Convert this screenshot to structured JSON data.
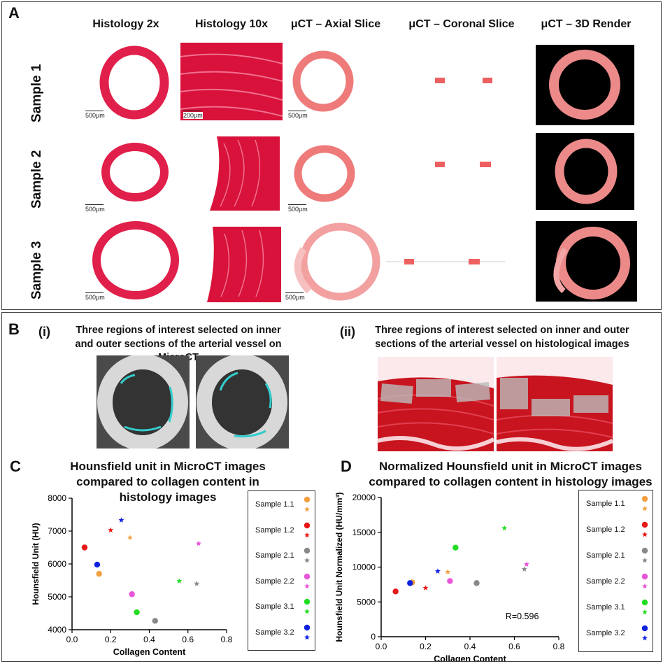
{
  "panel_a": {
    "letter": "A",
    "columns": [
      "Histology 2x",
      "Histology 10x",
      "μCT – Axial Slice",
      "μCT – Coronal Slice",
      "μCT – 3D Render"
    ],
    "rows": [
      "Sample 1",
      "Sample 2",
      "Sample 3"
    ],
    "scale_500": "500μm",
    "scale_200": "200μm"
  },
  "panel_b": {
    "letter": "B",
    "i_label": "(i)",
    "i_title": "Three regions of interest selected on inner and outer sections of the arterial vessel on MicroCT",
    "ii_label": "(ii)",
    "ii_title": "Three regions of interest selected on inner and outer sections of the arterial vessel on histological images"
  },
  "chart_data": [
    {
      "panel": "C",
      "type": "scatter",
      "title": "Hounsfield unit in MicroCT images compared to collagen content in histology images",
      "xlabel": "Collagen Content",
      "ylabel": "Hounsfield Unit (HU)",
      "xlim": [
        0,
        0.8
      ],
      "ylim": [
        4000,
        8000
      ],
      "xticks": [
        "0.0",
        "0.2",
        "0.4",
        "0.6",
        "0.8"
      ],
      "yticks": [
        "4000",
        "5000",
        "6000",
        "7000",
        "8000"
      ],
      "annotation": "",
      "series": [
        {
          "name": "Sample 1.1",
          "color": "#f5a040",
          "dot": [
            0.14,
            5700
          ],
          "star": [
            0.3,
            6800
          ]
        },
        {
          "name": "Sample 1.2",
          "color": "#e81818",
          "dot": [
            0.065,
            6500
          ],
          "star": [
            0.2,
            7030
          ]
        },
        {
          "name": "Sample 2.1",
          "color": "#888888",
          "dot": [
            0.43,
            4270
          ],
          "star": [
            0.645,
            5400
          ]
        },
        {
          "name": "Sample 2.2",
          "color": "#e855d8",
          "dot": [
            0.31,
            5080
          ],
          "star": [
            0.655,
            6620
          ]
        },
        {
          "name": "Sample 3.1",
          "color": "#22dd22",
          "dot": [
            0.335,
            4530
          ],
          "star": [
            0.555,
            5480
          ]
        },
        {
          "name": "Sample 3.2",
          "color": "#1020e0",
          "dot": [
            0.13,
            5980
          ],
          "star": [
            0.255,
            7330
          ]
        }
      ]
    },
    {
      "panel": "D",
      "type": "scatter",
      "title": "Normalized Hounsfield unit in MicroCT images compared to collagen content in histology images",
      "xlabel": "Collagen Content",
      "ylabel": "Hounsfield Unit Normalized (HU/mm³)",
      "xlim": [
        0,
        0.8
      ],
      "ylim": [
        0,
        20000
      ],
      "xticks": [
        "0.0",
        "0.2",
        "0.4",
        "0.6",
        "0.8"
      ],
      "yticks": [
        "0",
        "5000",
        "10000",
        "15000",
        "20000"
      ],
      "annotation": "R=0.596",
      "series": [
        {
          "name": "Sample 1.1",
          "color": "#f5a040",
          "dot": [
            0.14,
            7800
          ],
          "star": [
            0.3,
            9300
          ]
        },
        {
          "name": "Sample 1.2",
          "color": "#e81818",
          "dot": [
            0.065,
            6500
          ],
          "star": [
            0.2,
            7000
          ]
        },
        {
          "name": "Sample 2.1",
          "color": "#888888",
          "dot": [
            0.43,
            7700
          ],
          "star": [
            0.645,
            9700
          ]
        },
        {
          "name": "Sample 2.2",
          "color": "#e855d8",
          "dot": [
            0.31,
            8000
          ],
          "star": [
            0.655,
            10400
          ]
        },
        {
          "name": "Sample 3.1",
          "color": "#22dd22",
          "dot": [
            0.335,
            12800
          ],
          "star": [
            0.555,
            15600
          ]
        },
        {
          "name": "Sample 3.2",
          "color": "#1020e0",
          "dot": [
            0.13,
            7700
          ],
          "star": [
            0.255,
            9400
          ]
        }
      ]
    }
  ]
}
